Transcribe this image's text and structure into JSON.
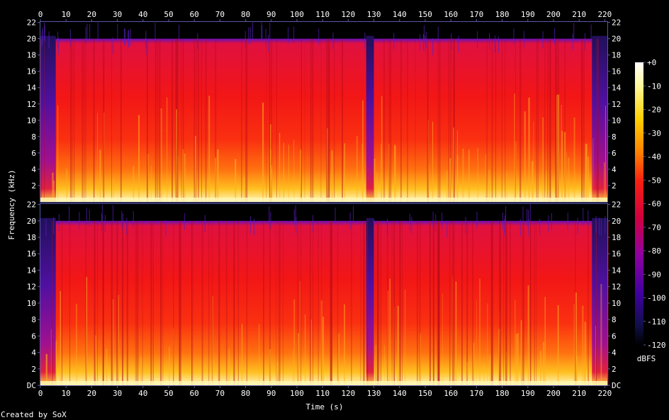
{
  "chart_data": {
    "type": "heatmap",
    "xlabel": "Time (s)",
    "ylabel": "Frequency (kHz)",
    "x_ticks": [
      0,
      10,
      20,
      30,
      40,
      50,
      60,
      70,
      80,
      90,
      100,
      110,
      120,
      130,
      140,
      150,
      160,
      170,
      180,
      190,
      200,
      210,
      220
    ],
    "xlim": [
      0,
      221
    ],
    "y_ticks_top": [
      "2",
      "4",
      "6",
      "8",
      "10",
      "12",
      "14",
      "16",
      "18",
      "20",
      "22"
    ],
    "y_ticks_bottom": [
      "DC",
      "2",
      "4",
      "6",
      "8",
      "10",
      "12",
      "14",
      "16",
      "18",
      "20",
      "22"
    ],
    "ylim_khz": [
      0,
      22.05
    ],
    "channels": 2,
    "colorbar": {
      "label": "dBFS",
      "ticks": [
        "+0",
        "-10",
        "-20",
        "-30",
        "-40",
        "-50",
        "-60",
        "-70",
        "-80",
        "-90",
        "-100",
        "-110",
        "-120"
      ],
      "range": [
        -120,
        0
      ]
    },
    "spectral_cutoff_khz": 20,
    "quiet_regions_s": [
      [
        0,
        6
      ],
      [
        127,
        130
      ],
      [
        215,
        221
      ]
    ],
    "colors": {
      "background": "#000000",
      "axis": "#5858a8",
      "text": "#ffffff"
    }
  },
  "footer": {
    "credit": "Created by SoX"
  }
}
